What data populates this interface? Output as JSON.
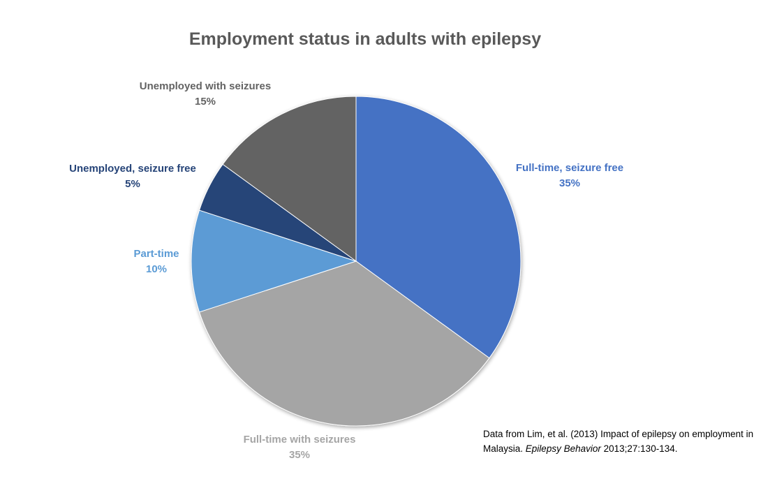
{
  "chart_data": {
    "type": "pie",
    "title": "Employment status in adults with epilepsy",
    "slices": [
      {
        "name": "Full-time, seizure free",
        "value": 35,
        "label": "35%",
        "color": "#4472C4",
        "label_color": "#4472C4"
      },
      {
        "name": "Full-time with seizures",
        "value": 35,
        "label": "35%",
        "color": "#A5A5A5",
        "label_color": "#A5A5A5"
      },
      {
        "name": "Part-time",
        "value": 10,
        "label": "10%",
        "color": "#5B9BD5",
        "label_color": "#5B9BD5"
      },
      {
        "name": "Unemployed, seizure free",
        "value": 5,
        "label": "5%",
        "color": "#264478",
        "label_color": "#264478"
      },
      {
        "name": "Unemployed with seizures",
        "value": 15,
        "label": "15%",
        "color": "#636363",
        "label_color": "#636363"
      }
    ],
    "start_angle_deg": 0,
    "direction": "clockwise",
    "legend": "none"
  },
  "source_note": {
    "line1": "Data from Lim, et al. (2013) Impact of epilepsy on employment in Malaysia.",
    "journal": "Epilepsy Behavior",
    "tail": "2013;27:130-134."
  }
}
